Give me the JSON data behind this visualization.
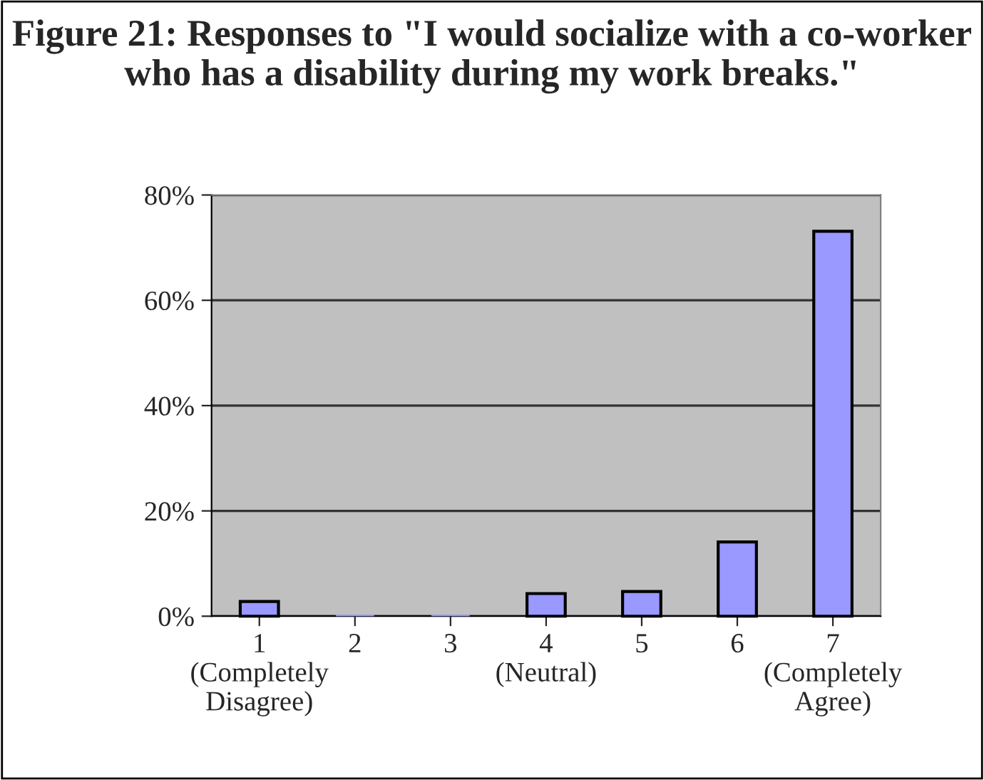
{
  "chart_data": {
    "type": "bar",
    "title": "Figure 21: Responses to \"I would socialize with a co-worker who has a disability during my work breaks.\"",
    "categories": [
      "1\n(Completely\nDisagree)",
      "2",
      "3",
      "4\n(Neutral)",
      "5",
      "6",
      "7\n(Completely\nAgree)"
    ],
    "values": [
      2.8,
      0.3,
      0.3,
      4.3,
      4.7,
      14.1,
      73.1
    ],
    "color": "#9999ff",
    "ylim": [
      0,
      80
    ],
    "yticks": [
      {
        "value": 0,
        "label": "0%"
      },
      {
        "value": 20,
        "label": "20%"
      },
      {
        "value": 40,
        "label": "40%"
      },
      {
        "value": 60,
        "label": "60%"
      },
      {
        "value": 80,
        "label": "80%"
      }
    ],
    "grid": "y"
  }
}
